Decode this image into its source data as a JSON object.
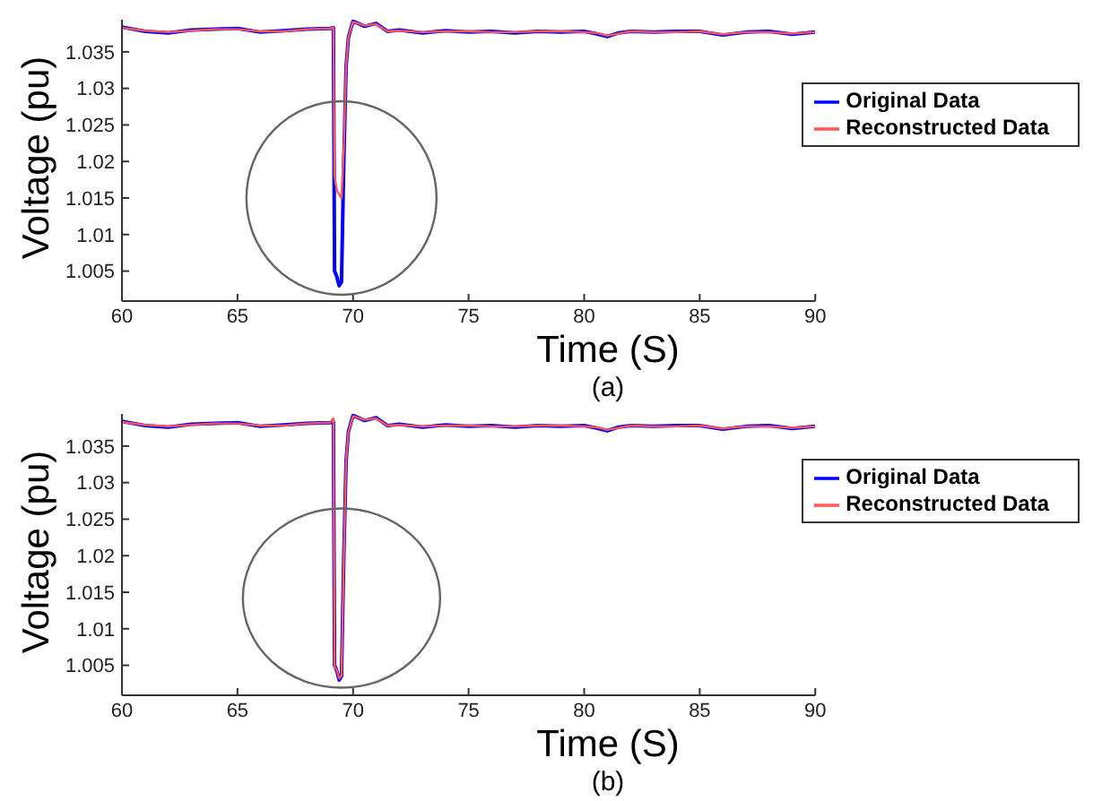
{
  "chart_data": [
    {
      "type": "line",
      "xlabel": "Time (S)",
      "ylabel": "Voltage (pu)",
      "annotations": [
        "(a)"
      ],
      "legend": "right",
      "marker": "none",
      "line_style": "solid",
      "x": [
        60,
        61,
        62,
        63,
        64,
        65,
        66,
        67,
        68,
        69,
        69.15,
        69.2,
        69.3,
        69.4,
        69.5,
        69.6,
        69.7,
        69.8,
        70,
        70.5,
        71,
        71.5,
        72,
        73,
        74,
        75,
        76,
        77,
        78,
        79,
        80,
        80.5,
        81,
        81.5,
        82,
        83,
        84,
        85,
        86,
        87,
        88,
        89,
        90
      ],
      "xlim": [
        60,
        90
      ],
      "xticks": [
        60,
        65,
        70,
        75,
        80,
        85,
        90
      ],
      "ylim": [
        1.0009,
        1.0394
      ],
      "yticks": [
        1.005,
        1.01,
        1.015,
        1.02,
        1.025,
        1.03,
        1.035
      ],
      "series": [
        {
          "name": "Original Data",
          "color": "#0000ff",
          "values": [
            1.0384,
            1.0378,
            1.0376,
            1.038,
            1.0381,
            1.0382,
            1.0377,
            1.0379,
            1.0381,
            1.0382,
            1.0383,
            1.005,
            1.0042,
            1.003,
            1.0035,
            1.02,
            1.033,
            1.037,
            1.0392,
            1.0385,
            1.0389,
            1.0378,
            1.038,
            1.0376,
            1.0379,
            1.0377,
            1.0378,
            1.0376,
            1.0378,
            1.0377,
            1.0378,
            1.0375,
            1.0371,
            1.0376,
            1.0378,
            1.0377,
            1.0378,
            1.0378,
            1.0373,
            1.0377,
            1.0378,
            1.0374,
            1.0377
          ]
        },
        {
          "name": "Reconstructed Data",
          "color": "#ff5555",
          "values": [
            1.0383,
            1.0379,
            1.0377,
            1.0379,
            1.0381,
            1.0381,
            1.0378,
            1.0378,
            1.0381,
            1.0382,
            1.0383,
            1.018,
            1.016,
            1.0155,
            1.015,
            1.022,
            1.033,
            1.037,
            1.0391,
            1.0386,
            1.0388,
            1.0378,
            1.0379,
            1.0377,
            1.0378,
            1.0378,
            1.0377,
            1.0377,
            1.0378,
            1.0378,
            1.0377,
            1.0376,
            1.0372,
            1.0375,
            1.0378,
            1.0377,
            1.0377,
            1.0378,
            1.0374,
            1.0377,
            1.0377,
            1.0375,
            1.0377
          ]
        }
      ]
    },
    {
      "type": "line",
      "xlabel": "Time (S)",
      "ylabel": "Voltage (pu)",
      "annotations": [
        "(b)"
      ],
      "legend": "top right",
      "marker": "none",
      "line_style": "solid",
      "x": [
        60,
        61,
        62,
        63,
        64,
        65,
        66,
        67,
        68,
        69,
        69.15,
        69.2,
        69.3,
        69.4,
        69.5,
        69.6,
        69.7,
        69.8,
        70,
        70.5,
        71,
        71.5,
        72,
        73,
        74,
        75,
        76,
        77,
        78,
        79,
        80,
        80.5,
        81,
        81.5,
        82,
        83,
        84,
        85,
        86,
        87,
        88,
        89,
        90
      ],
      "xlim": [
        60,
        90
      ],
      "xticks": [
        60,
        65,
        70,
        75,
        80,
        85,
        90
      ],
      "ylim": [
        1.0009,
        1.0394
      ],
      "yticks": [
        1.005,
        1.01,
        1.015,
        1.02,
        1.025,
        1.03,
        1.035
      ],
      "series": [
        {
          "name": "Original Data",
          "color": "#0000ff",
          "values": [
            1.0384,
            1.0378,
            1.0376,
            1.038,
            1.0381,
            1.0382,
            1.0377,
            1.0379,
            1.0381,
            1.0382,
            1.0383,
            1.005,
            1.0042,
            1.003,
            1.0035,
            1.02,
            1.033,
            1.037,
            1.0392,
            1.0385,
            1.0389,
            1.0378,
            1.038,
            1.0376,
            1.0379,
            1.0377,
            1.0378,
            1.0376,
            1.0378,
            1.0377,
            1.0378,
            1.0375,
            1.0371,
            1.0376,
            1.0378,
            1.0377,
            1.0378,
            1.0378,
            1.0373,
            1.0377,
            1.0378,
            1.0374,
            1.0377
          ]
        },
        {
          "name": "Reconstructed Data",
          "color": "#ff5555",
          "values": [
            1.0383,
            1.0379,
            1.0377,
            1.0379,
            1.0381,
            1.0381,
            1.0378,
            1.0378,
            1.0381,
            1.0382,
            1.0388,
            1.0048,
            1.0043,
            1.0032,
            1.0036,
            1.0198,
            1.0331,
            1.0369,
            1.0391,
            1.0386,
            1.0388,
            1.0378,
            1.0379,
            1.0377,
            1.0378,
            1.0378,
            1.0377,
            1.0377,
            1.0378,
            1.0378,
            1.0377,
            1.0376,
            1.0372,
            1.0375,
            1.0378,
            1.0377,
            1.0377,
            1.0378,
            1.0374,
            1.0377,
            1.0377,
            1.0375,
            1.0377
          ]
        }
      ]
    }
  ]
}
